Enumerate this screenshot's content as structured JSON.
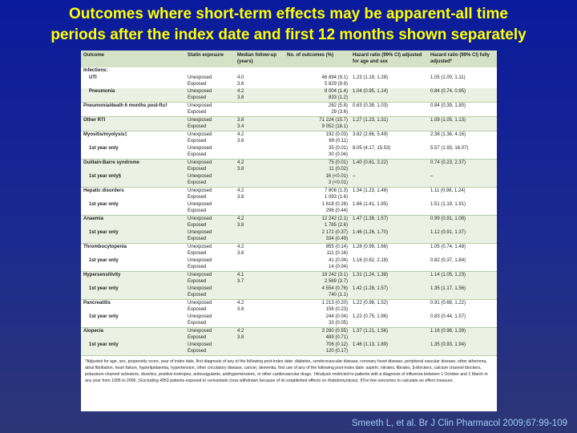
{
  "slide": {
    "title_line1": "Outcomes where short-term effects may be apparent-all time",
    "title_line2": "periods after the index date and first 12 months shown separately",
    "citation": "Smeeth L, et al. Br J Clin Pharmacol 2009;67:99-109"
  },
  "table": {
    "headers": [
      "Outcome",
      "Statin exposure",
      "Median follow-up (years)",
      "No. of outcomes (%)",
      "Hazard ratio (99% CI) adjusted for age and sex",
      "Hazard ratio (99% CI) fully adjusted*"
    ],
    "rows": [
      {
        "outcome": "Infections:",
        "exposure": "",
        "followup": "",
        "outcomes": "",
        "hr_age_sex": "",
        "hr_full": "",
        "shade": false,
        "group_start": true
      },
      {
        "outcome": "UTI",
        "exposure": "Unexposed",
        "followup": "4.0",
        "outcomes": "46 894 (9.1)",
        "hr_age_sex": "1.23 (1.19, 1.28)",
        "hr_full": "1.05 (1.00, 1.11)",
        "shade": false,
        "group_start": false,
        "indent": true
      },
      {
        "outcome": "",
        "exposure": "Exposed",
        "followup": "3.6",
        "outcomes": "5 829 (9.9)",
        "hr_age_sex": "",
        "hr_full": "",
        "shade": false,
        "group_start": false
      },
      {
        "outcome": "Pneumonia",
        "exposure": "Unexposed",
        "followup": "4.2",
        "outcomes": "8 004 (1.4)",
        "hr_age_sex": "1.04 (0.95, 1.14)",
        "hr_full": "0.84 (0.74, 0.95)",
        "shade": true,
        "group_start": false,
        "indent": true
      },
      {
        "outcome": "",
        "exposure": "Exposed",
        "followup": "3.8",
        "outcomes": "833 (1.2)",
        "hr_age_sex": "",
        "hr_full": "",
        "shade": true,
        "group_start": false
      },
      {
        "outcome": "Pneumonia/death 6 months post-flu†",
        "exposure": "Unexposed",
        "followup": "",
        "outcomes": "262 (5.8)",
        "hr_age_sex": "0.63 (0.38, 1.03)",
        "hr_full": "0.84 (0.39, 1.80)",
        "shade": false,
        "group_start": true
      },
      {
        "outcome": "",
        "exposure": "Exposed",
        "followup": "",
        "outcomes": "29 (3.6)",
        "hr_age_sex": "",
        "hr_full": "",
        "shade": false,
        "group_start": false
      },
      {
        "outcome": "Other RTI",
        "exposure": "Unexposed",
        "followup": "3.8",
        "outcomes": "71 224 (15.7)",
        "hr_age_sex": "1.27 (1.23, 1.31)",
        "hr_full": "1.09 (1.05, 1.13)",
        "shade": true,
        "group_start": true
      },
      {
        "outcome": "",
        "exposure": "Exposed",
        "followup": "3.4",
        "outcomes": "9 052 (18.1)",
        "hr_age_sex": "",
        "hr_full": "",
        "shade": true,
        "group_start": false
      },
      {
        "outcome": "Myositis/myolysis‡",
        "exposure": "Unexposed",
        "followup": "4.2",
        "outcomes": "192 (0.03)",
        "hr_age_sex": "3.82 (2.66, 5.49)",
        "hr_full": "2.38 (1.36, 4.16)",
        "shade": false,
        "group_start": true
      },
      {
        "outcome": "",
        "exposure": "Exposed",
        "followup": "3.6",
        "outcomes": "69 (0.11)",
        "hr_age_sex": "",
        "hr_full": "",
        "shade": false,
        "group_start": false
      },
      {
        "outcome": "1st year only",
        "exposure": "Unexposed",
        "followup": "",
        "outcomes": "35 (0.01)",
        "hr_age_sex": "8.05 (4.17, 15.53)",
        "hr_full": "5.57 (1.93, 16.07)",
        "shade": false,
        "group_start": false,
        "indent": true
      },
      {
        "outcome": "",
        "exposure": "Exposed",
        "followup": "",
        "outcomes": "30 (0.04)",
        "hr_age_sex": "",
        "hr_full": "",
        "shade": false,
        "group_start": false
      },
      {
        "outcome": "Guillain-Barre syndrome",
        "exposure": "Unexposed",
        "followup": "4.2",
        "outcomes": "75 (0.01)",
        "hr_age_sex": "1.40 (0.61, 3.22)",
        "hr_full": "0.74 (0.23, 2.37)",
        "shade": true,
        "group_start": true
      },
      {
        "outcome": "",
        "exposure": "Exposed",
        "followup": "3.8",
        "outcomes": "11 (0.02)",
        "hr_age_sex": "",
        "hr_full": "",
        "shade": true,
        "group_start": false
      },
      {
        "outcome": "1st year only§",
        "exposure": "Unexposed",
        "followup": "",
        "outcomes": "16 (<0.01)",
        "hr_age_sex": "–",
        "hr_full": "–",
        "shade": true,
        "group_start": false,
        "indent": true
      },
      {
        "outcome": "",
        "exposure": "Exposed",
        "followup": "",
        "outcomes": "3 (<0.01)",
        "hr_age_sex": "",
        "hr_full": "",
        "shade": true,
        "group_start": false
      },
      {
        "outcome": "Hepatic disorders",
        "exposure": "Unexposed",
        "followup": "4.2",
        "outcomes": "7 808 (1.3)",
        "hr_age_sex": "1.34 (1.23, 1.46)",
        "hr_full": "1.11 (0.98, 1.24)",
        "shade": false,
        "group_start": true
      },
      {
        "outcome": "",
        "exposure": "Exposed",
        "followup": "3.8",
        "outcomes": "1 093 (1.6)",
        "hr_age_sex": "",
        "hr_full": "",
        "shade": false,
        "group_start": false
      },
      {
        "outcome": "1st year only",
        "exposure": "Unexposed",
        "followup": "",
        "outcomes": "1 618 (0.28)",
        "hr_age_sex": "1.66 (1.41, 1.95)",
        "hr_full": "1.51 (1.19, 1.91)",
        "shade": false,
        "group_start": false,
        "indent": true
      },
      {
        "outcome": "",
        "exposure": "Exposed",
        "followup": "",
        "outcomes": "296 (0.44)",
        "hr_age_sex": "",
        "hr_full": "",
        "shade": false,
        "group_start": false
      },
      {
        "outcome": "Anaemia",
        "exposure": "Unexposed",
        "followup": "4.2",
        "outcomes": "12 242 (2.1)",
        "hr_age_sex": "1.47 (1.38, 1.57)",
        "hr_full": "0.99 (0.91, 1.08)",
        "shade": true,
        "group_start": true
      },
      {
        "outcome": "",
        "exposure": "Exposed",
        "followup": "3.8",
        "outcomes": "1 785 (2.6)",
        "hr_age_sex": "",
        "hr_full": "",
        "shade": true,
        "group_start": false
      },
      {
        "outcome": "1st year only",
        "exposure": "Unexposed",
        "followup": "",
        "outcomes": "2 172 (0.37)",
        "hr_age_sex": "1.46 (1.26, 1.70)",
        "hr_full": "1.12 (0.91, 1.37)",
        "shade": true,
        "group_start": false,
        "indent": true
      },
      {
        "outcome": "",
        "exposure": "Exposed",
        "followup": "",
        "outcomes": "334 (0.49)",
        "hr_age_sex": "",
        "hr_full": "",
        "shade": true,
        "group_start": false
      },
      {
        "outcome": "Thrombocytopenia",
        "exposure": "Unexposed",
        "followup": "4.2",
        "outcomes": "855 (0.14)",
        "hr_age_sex": "1.28 (0.99, 1.66)",
        "hr_full": "1.05 (0.74, 1.48)",
        "shade": false,
        "group_start": true
      },
      {
        "outcome": "",
        "exposure": "Exposed",
        "followup": "3.8",
        "outcomes": "111 (0.16)",
        "hr_age_sex": "",
        "hr_full": "",
        "shade": false,
        "group_start": false
      },
      {
        "outcome": "1st year only",
        "exposure": "Unexposed",
        "followup": "",
        "outcomes": "41 (0.04)",
        "hr_age_sex": "1.16 (0.62, 2.18)",
        "hr_full": "0.82 (0.37, 1.84)",
        "shade": false,
        "group_start": false,
        "indent": true
      },
      {
        "outcome": "",
        "exposure": "Exposed",
        "followup": "",
        "outcomes": "14 (0.04)",
        "hr_age_sex": "",
        "hr_full": "",
        "shade": false,
        "group_start": false
      },
      {
        "outcome": "Hypersensitivity",
        "exposure": "Unexposed",
        "followup": "4.1",
        "outcomes": "18 242 (3.1)",
        "hr_age_sex": "1.31 (1.24, 1.38)",
        "hr_full": "1.14 (1.05, 1.23)",
        "shade": true,
        "group_start": true
      },
      {
        "outcome": "",
        "exposure": "Exposed",
        "followup": "3.7",
        "outcomes": "2 569 (3.7)",
        "hr_age_sex": "",
        "hr_full": "",
        "shade": true,
        "group_start": false
      },
      {
        "outcome": "1st year only",
        "exposure": "Unexposed",
        "followup": "",
        "outcomes": "4 554 (0.76)",
        "hr_age_sex": "1.42 (1.28, 1.57)",
        "hr_full": "1.35 (1.17, 1.56)",
        "shade": true,
        "group_start": false,
        "indent": true
      },
      {
        "outcome": "",
        "exposure": "Exposed",
        "followup": "",
        "outcomes": "740 (1.1)",
        "hr_age_sex": "",
        "hr_full": "",
        "shade": true,
        "group_start": false
      },
      {
        "outcome": "Pancreatitis",
        "exposure": "Unexposed",
        "followup": "4.2",
        "outcomes": "1 213 (0.20)",
        "hr_age_sex": "1.22 (0.98, 1.52)",
        "hr_full": "0.91 (0.68, 1.22)",
        "shade": false,
        "group_start": true
      },
      {
        "outcome": "",
        "exposure": "Exposed",
        "followup": "3.8",
        "outcomes": "156 (0.23)",
        "hr_age_sex": "",
        "hr_full": "",
        "shade": false,
        "group_start": false
      },
      {
        "outcome": "1st year only",
        "exposure": "Unexposed",
        "followup": "",
        "outcomes": "244 (0.04)",
        "hr_age_sex": "1.22 (0.75, 1.96)",
        "hr_full": "0.83 (0.44, 1.57)",
        "shade": false,
        "group_start": false,
        "indent": true
      },
      {
        "outcome": "",
        "exposure": "Exposed",
        "followup": "",
        "outcomes": "33 (0.05)",
        "hr_age_sex": "",
        "hr_full": "",
        "shade": false,
        "group_start": false
      },
      {
        "outcome": "Alopecia",
        "exposure": "Unexposed",
        "followup": "4.2",
        "outcomes": "3 280 (0.55)",
        "hr_age_sex": "1.37 (1.21, 1.56)",
        "hr_full": "1.16 (0.98, 1.39)",
        "shade": true,
        "group_start": true
      },
      {
        "outcome": "",
        "exposure": "Exposed",
        "followup": "3.8",
        "outcomes": "489 (0.71)",
        "hr_age_sex": "",
        "hr_full": "",
        "shade": true,
        "group_start": false
      },
      {
        "outcome": "1st year only",
        "exposure": "Unexposed",
        "followup": "",
        "outcomes": "706 (0.12)",
        "hr_age_sex": "1.46 (1.13, 1.89)",
        "hr_full": "1.35 (0.93, 1.94)",
        "shade": true,
        "group_start": false,
        "indent": true
      },
      {
        "outcome": "",
        "exposure": "Exposed",
        "followup": "",
        "outcomes": "120 (0.17)",
        "hr_age_sex": "",
        "hr_full": "",
        "shade": true,
        "group_start": false
      }
    ],
    "footnote": "*Adjusted for age, sex, propensity score, year of index date, first diagnosis of any of the following post-index date: diabetes, cerebrovascular disease, coronary heart disease, peripheral vascular disease, other atheroma, atrial fibrillation, heart failure, hyperlipidaemia, hypertension, other circulatory disease, cancer, dementia, first use of any of the following post-index date: aspirin, nitrates, fibrates, β-blockers, calcium channel blockers, potassium channel activators, diuretics, positive inotropes, anticoagulants, antihypertensives, or other cardiovascular drugs. †Analysis restricted to patients with a diagnosis of influenza between 1 October and 1 March in any year from 1995 to 2006. ‡Excluding 4953 patients exposed to cerivastatin (now withdrawn because of its established effects on rhabdomyolysis). §Too few outcomes to calculate an effect measure."
  }
}
